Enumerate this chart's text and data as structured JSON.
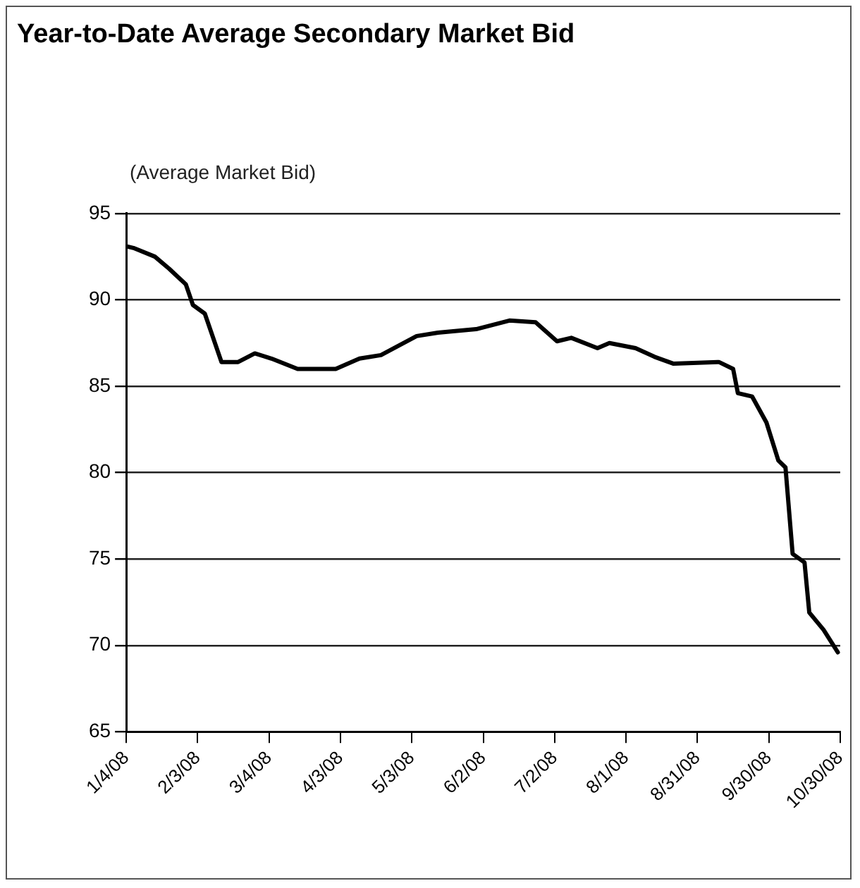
{
  "chart_data": {
    "type": "line",
    "title": "Year-to-Date Average Secondary Market Bid",
    "ylabel": "(Average Market Bid)",
    "x": [
      "2008-01-04",
      "2008-01-07",
      "2008-01-16",
      "2008-01-22",
      "2008-01-29",
      "2008-02-01",
      "2008-02-06",
      "2008-02-13",
      "2008-02-20",
      "2008-02-27",
      "2008-03-05",
      "2008-03-16",
      "2008-04-01",
      "2008-04-11",
      "2008-04-20",
      "2008-05-05",
      "2008-05-14",
      "2008-05-30",
      "2008-06-13",
      "2008-06-24",
      "2008-07-03",
      "2008-07-09",
      "2008-07-20",
      "2008-07-25",
      "2008-08-05",
      "2008-08-13",
      "2008-08-21",
      "2008-09-09",
      "2008-09-15",
      "2008-09-17",
      "2008-09-23",
      "2008-09-29",
      "2008-10-04",
      "2008-10-07",
      "2008-10-10",
      "2008-10-15",
      "2008-10-17",
      "2008-10-23",
      "2008-10-29"
    ],
    "series": [
      {
        "color": "#000000",
        "values": [
          93.1,
          93.0,
          92.5,
          91.8,
          90.9,
          89.7,
          89.2,
          86.4,
          86.4,
          86.9,
          86.6,
          86.0,
          86.0,
          86.6,
          86.8,
          87.9,
          88.1,
          88.3,
          88.8,
          88.7,
          87.6,
          87.8,
          87.2,
          87.5,
          87.2,
          86.7,
          86.3,
          86.4,
          86.0,
          84.6,
          84.4,
          82.9,
          80.7,
          80.3,
          75.3,
          74.8,
          71.9,
          70.9,
          69.6
        ]
      }
    ],
    "xlim": [
      "2008-01-04",
      "2008-10-30"
    ],
    "xticks": [
      {
        "value": "2008-01-04",
        "label": "1/4/08"
      },
      {
        "value": "2008-02-03",
        "label": "2/3/08"
      },
      {
        "value": "2008-03-04",
        "label": "3/4/08"
      },
      {
        "value": "2008-04-03",
        "label": "4/3/08"
      },
      {
        "value": "2008-05-03",
        "label": "5/3/08"
      },
      {
        "value": "2008-06-02",
        "label": "6/2/08"
      },
      {
        "value": "2008-07-02",
        "label": "7/2/08"
      },
      {
        "value": "2008-08-01",
        "label": "8/1/08"
      },
      {
        "value": "2008-08-31",
        "label": "8/31/08"
      },
      {
        "value": "2008-09-30",
        "label": "9/30/08"
      },
      {
        "value": "2008-10-30",
        "label": "10/30/08"
      }
    ],
    "ylim": [
      65,
      95
    ],
    "yticks": [
      65,
      70,
      75,
      80,
      85,
      90,
      95
    ],
    "grid": "y",
    "legend": false,
    "marker": "none",
    "line_style": "solid"
  }
}
